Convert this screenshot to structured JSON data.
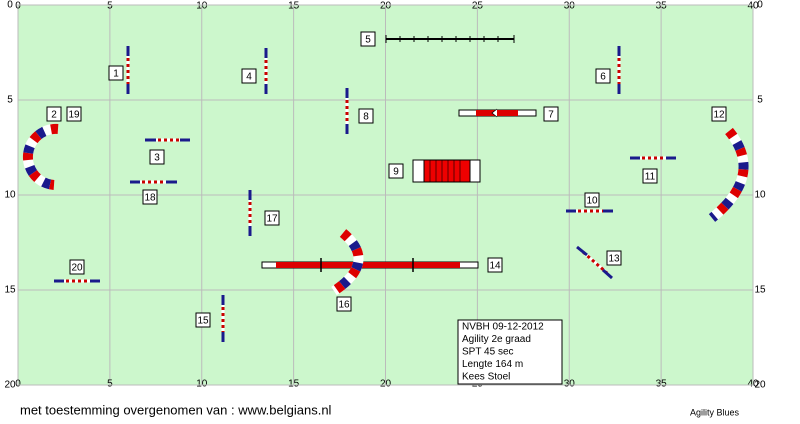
{
  "axes": {
    "x_ticks": [
      0,
      5,
      10,
      15,
      20,
      25,
      30,
      35,
      40
    ],
    "y_ticks": [
      0,
      5,
      10,
      15,
      20
    ]
  },
  "obstacles": [
    "1",
    "2",
    "19",
    "3",
    "4",
    "5",
    "6",
    "7",
    "8",
    "9",
    "10",
    "11",
    "12",
    "13",
    "14",
    "15",
    "16",
    "17",
    "18",
    "20"
  ],
  "info": [
    "NVBH 09-12-2012",
    "Agility 2e graad",
    "SPT 45 sec",
    "Lengte 164 m",
    "Kees Stoel"
  ],
  "footer": {
    "credit": "met toestemming overgenomen van : www.belgians.nl",
    "brand": "Agility Blues"
  }
}
